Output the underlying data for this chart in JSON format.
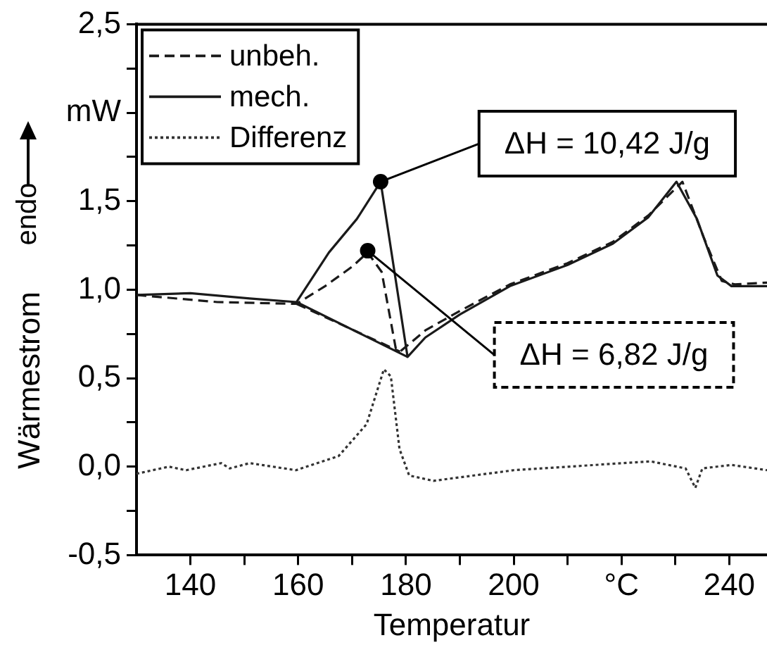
{
  "chart_data": {
    "type": "line",
    "xlabel": "Temperatur",
    "ylabel": "Wärmestrom",
    "xlim": [
      130,
      247
    ],
    "xticks": [
      140,
      {
        "value": 150,
        "label": null
      },
      160,
      {
        "value": 170,
        "label": null
      },
      180,
      {
        "value": 190,
        "label": null
      },
      200,
      {
        "value": 210,
        "label": null
      },
      {
        "value": 220,
        "label": "°C"
      },
      {
        "value": 230,
        "label": null
      },
      240
    ],
    "ylim": [
      -0.5,
      2.5
    ],
    "yticks": [
      {
        "value": -0.5,
        "label": "-0,5"
      },
      {
        "value": -0.25,
        "label": null
      },
      {
        "value": 0,
        "label": "0,0"
      },
      {
        "value": 0.25,
        "label": null
      },
      {
        "value": 0.5,
        "label": "0,5"
      },
      {
        "value": 0.75,
        "label": null
      },
      {
        "value": 1,
        "label": "1,0"
      },
      {
        "value": 1.25,
        "label": null
      },
      {
        "value": 1.5,
        "label": "1,5"
      },
      {
        "value": 1.75,
        "label": null
      },
      {
        "value": 2,
        "label": "mW"
      },
      {
        "value": 2.25,
        "label": null
      },
      {
        "value": 2.5,
        "label": "2,5"
      }
    ],
    "grid": false,
    "legend": "top left",
    "marker": "none",
    "series": [
      {
        "name": "unbeh.",
        "color": "#1a1a1a",
        "line_style": "dashed",
        "x": [
          130,
          145,
          159.7,
          165,
          170,
          172.9,
          175.5,
          178.1,
          178.9,
          183.6,
          190,
          199.3,
          210,
          218.4,
          225,
          231.3,
          235.2,
          238.6,
          241,
          247
        ],
        "values": [
          0.97,
          0.93,
          0.92,
          1.02,
          1.13,
          1.21,
          1.1,
          0.67,
          0.65,
          0.77,
          0.88,
          1.03,
          1.15,
          1.27,
          1.42,
          1.61,
          1.3,
          1.05,
          1.03,
          1.04
        ]
      },
      {
        "name": "mech.",
        "color": "#1a1a1a",
        "line_style": "solid",
        "x": [
          130,
          140,
          151,
          159.7,
          165.7,
          170.9,
          175.3,
          180.3,
          183.6,
          190,
          199.3,
          210,
          218.4,
          225,
          230.2,
          234,
          237.8,
          240.4,
          247
        ],
        "values": [
          0.97,
          0.98,
          0.95,
          0.93,
          1.21,
          1.4,
          1.61,
          0.62,
          0.73,
          0.86,
          1.02,
          1.14,
          1.26,
          1.41,
          1.61,
          1.4,
          1.08,
          1.02,
          1.02
        ]
      },
      {
        "name": "Differenz",
        "color": "#333333",
        "line_style": "dotted",
        "x": [
          130,
          136,
          139.2,
          145.7,
          147.3,
          151,
          159.6,
          167.5,
          172.7,
          175.9,
          177.2,
          178.8,
          180.6,
          185.1,
          200,
          225.4,
          231.9,
          233.7,
          235,
          240.4,
          247
        ],
        "values": [
          -0.04,
          0.0,
          -0.02,
          0.02,
          -0.01,
          0.02,
          -0.02,
          0.06,
          0.24,
          0.55,
          0.51,
          0.1,
          -0.05,
          -0.08,
          -0.02,
          0.03,
          -0.01,
          -0.12,
          -0.01,
          0.01,
          -0.02
        ]
      },
      {
        "color": "#1a1a1a",
        "line_style": "dashed",
        "x": [
          159.7,
          178.9
        ],
        "values": [
          0.92,
          0.65
        ]
      },
      {
        "color": "#1a1a1a",
        "line_style": "solid",
        "x": [
          159.7,
          180.3
        ],
        "values": [
          0.93,
          0.62
        ]
      }
    ],
    "annotations": [
      "endo",
      {
        "text": "ΔH = 10,42 J/g",
        "x": 175.3,
        "y": 1.61
      },
      {
        "text": "ΔH = 6,82 J/g",
        "x": 172.9,
        "y": 1.22
      }
    ]
  }
}
